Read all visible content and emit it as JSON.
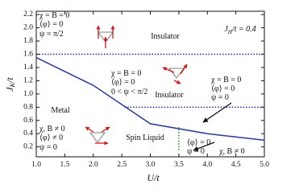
{
  "chart_data": {
    "type": "line",
    "x_label": "U/t",
    "y_label": "J_K/t",
    "x": [
      1,
      2,
      3,
      4,
      5
    ],
    "series": [
      {
        "color": "#2b3a9a",
        "values": [
          1.55,
          1.13,
          0.55,
          0.4,
          0.3
        ]
      }
    ],
    "reference_lines": [
      {
        "orientation": "horizontal",
        "value": 1.6,
        "from": 1,
        "to": 5,
        "color": "#2b3a9a",
        "style": "dotted"
      },
      {
        "orientation": "horizontal",
        "value": 0.8,
        "from": 2.55,
        "to": 5,
        "color": "#2b3a9a",
        "style": "dotted"
      },
      {
        "orientation": "vertical",
        "value": 3.5,
        "from": 0.15,
        "to": 0.5,
        "color": "#22a022",
        "style": "dotted"
      }
    ],
    "annotations": [
      "J_H/t = 0.4",
      "χ = B = 0",
      "⟨φ⟩ = 0",
      "ψ = π/2",
      "Insulator",
      "χ = B = 0",
      "⟨φ⟩ = 0",
      "0 < ψ < π/2",
      "Insulator",
      "χ = B = 0",
      "⟨φ⟩ = 0",
      "ψ = 0",
      "Metal",
      "χ, B ≠ 0",
      "⟨φ⟩ ≠ 0",
      "ψ = 0",
      "Spin Liquid",
      "⟨φ⟩ = 0",
      "ψ = 0",
      "χ, B ≠ 0"
    ],
    "xlim": [
      1,
      5
    ],
    "ylim": [
      0.05,
      2.25
    ],
    "xticks": [
      {
        "value": 1,
        "label": "1.0"
      },
      1.5,
      {
        "value": 2,
        "label": "2.0"
      },
      2.5,
      {
        "value": 3,
        "label": "3.0"
      },
      3.5,
      {
        "value": 4,
        "label": "4.0"
      },
      4.5,
      {
        "value": 5,
        "label": "5.0"
      }
    ],
    "yticks": [
      0.2,
      0.4,
      0.6,
      0.8,
      {
        "value": 1,
        "label": "1.0"
      },
      1.2,
      1.4,
      1.6,
      1.8,
      {
        "value": 2,
        "label": "2.0"
      },
      2.2
    ]
  }
}
